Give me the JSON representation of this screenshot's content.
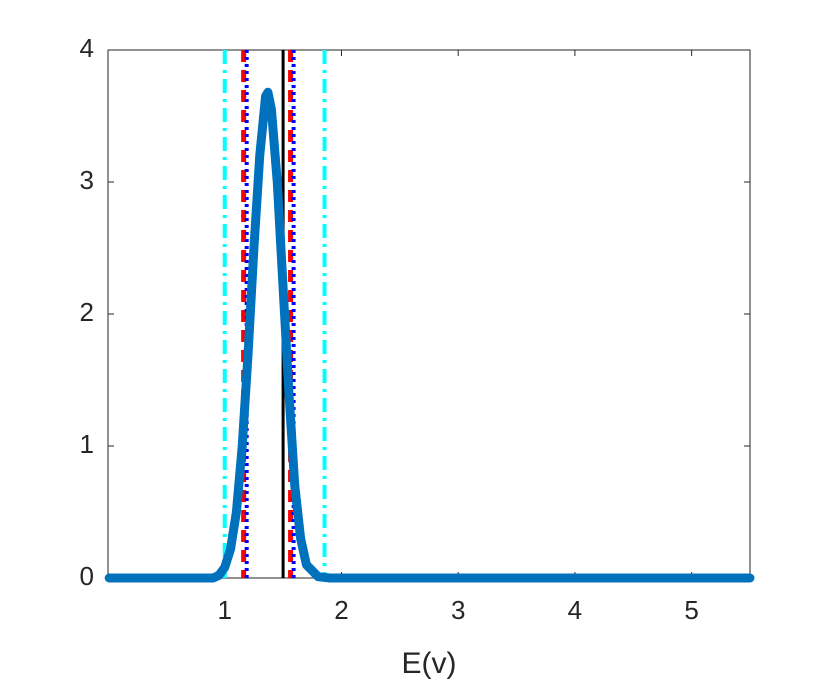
{
  "chart_data": {
    "type": "line",
    "xlabel": "E(v)",
    "xlim": [
      0,
      5.5
    ],
    "ylim": [
      0,
      4
    ],
    "xticks": [
      1,
      2,
      3,
      4,
      5
    ],
    "yticks": [
      0,
      1,
      2,
      3,
      4
    ],
    "grid": false,
    "series": [
      {
        "color": "#0072bd",
        "x": [
          0.01,
          0.5,
          0.9,
          0.95,
          1.0,
          1.05,
          1.1,
          1.15,
          1.2,
          1.25,
          1.3,
          1.35,
          1.37,
          1.4,
          1.45,
          1.5,
          1.55,
          1.6,
          1.65,
          1.7,
          1.8,
          1.9,
          2,
          3,
          4,
          5,
          5.5
        ],
        "values": [
          0,
          0,
          0,
          0.02,
          0.08,
          0.22,
          0.5,
          1.0,
          1.7,
          2.5,
          3.2,
          3.65,
          3.68,
          3.55,
          3.0,
          2.2,
          1.4,
          0.7,
          0.3,
          0.1,
          0.01,
          0,
          0,
          0,
          0,
          0,
          0
        ]
      }
    ],
    "vlines": [
      {
        "x": 1.0,
        "color": "#00ffff",
        "style": "dashdot"
      },
      {
        "x": 1.855,
        "color": "#00ffff",
        "style": "dashdot"
      },
      {
        "x": 1.162,
        "color": "#ff0000",
        "style": "dashed"
      },
      {
        "x": 1.564,
        "color": "#ff0000",
        "style": "dashed"
      },
      {
        "x": 1.188,
        "color": "#0000ff",
        "style": "dotted"
      },
      {
        "x": 1.59,
        "color": "#0000ff",
        "style": "dotted"
      },
      {
        "x": 1.5,
        "color": "#000000",
        "style": "solid"
      }
    ]
  }
}
